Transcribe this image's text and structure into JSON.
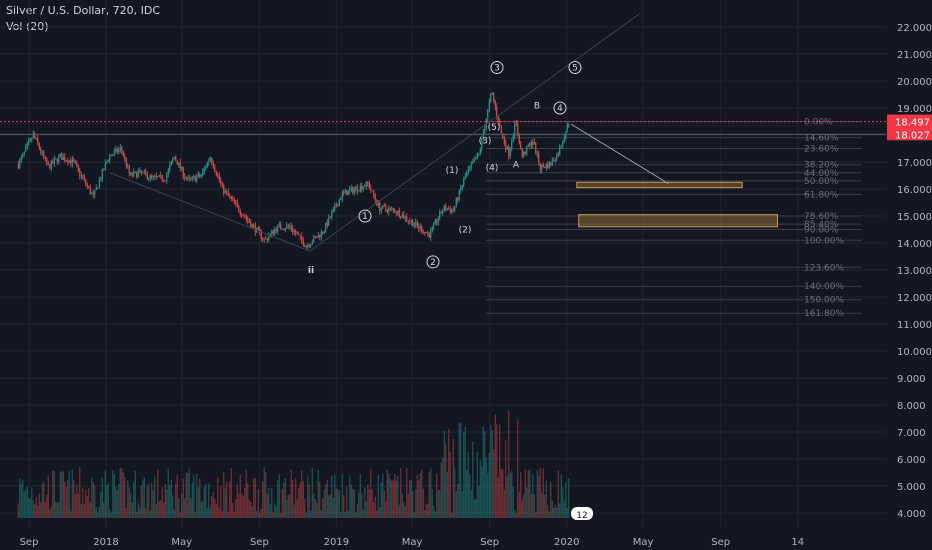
{
  "header": {
    "title": "Silver / U.S. Dollar, 720, IDC",
    "volume_label": "Vol (20)"
  },
  "colors": {
    "background": "#131722",
    "grid": "#1f2430",
    "up": "#26a69a",
    "down": "#ef5350",
    "axis_text": "#b2b5be",
    "price_line": "#f23645",
    "box": "#8a6a3a"
  },
  "chart_data": {
    "type": "candlestick",
    "title": "Silver / U.S. Dollar, 720, IDC",
    "xlabel": "",
    "ylabel": "",
    "ylim": [
      3.5,
      22.5
    ],
    "y_ticks": [
      "22.000",
      "21.000",
      "20.000",
      "19.000",
      "18.000",
      "17.000",
      "16.000",
      "15.000",
      "14.000",
      "13.000",
      "12.000",
      "11.000",
      "10.000",
      "9.000",
      "8.000",
      "7.000",
      "6.000",
      "5.000",
      "4.000"
    ],
    "x_ticks": [
      "Sep",
      "2018",
      "May",
      "Sep",
      "2019",
      "May",
      "Sep",
      "2020",
      "May",
      "Sep",
      "14"
    ],
    "price_path": [
      [
        "2017-08-15",
        16.9
      ],
      [
        "2017-09-08",
        18.0
      ],
      [
        "2017-10-01",
        16.8
      ],
      [
        "2017-10-20",
        17.2
      ],
      [
        "2017-11-10",
        17.0
      ],
      [
        "2017-12-12",
        15.7
      ],
      [
        "2018-01-05",
        17.2
      ],
      [
        "2018-01-25",
        17.5
      ],
      [
        "2018-02-08",
        16.5
      ],
      [
        "2018-02-25",
        16.6
      ],
      [
        "2018-03-15",
        16.4
      ],
      [
        "2018-04-05",
        16.4
      ],
      [
        "2018-04-19",
        17.2
      ],
      [
        "2018-05-10",
        16.3
      ],
      [
        "2018-06-01",
        16.5
      ],
      [
        "2018-06-15",
        17.2
      ],
      [
        "2018-07-05",
        16.0
      ],
      [
        "2018-08-15",
        14.8
      ],
      [
        "2018-09-10",
        14.1
      ],
      [
        "2018-09-30",
        14.6
      ],
      [
        "2018-10-20",
        14.6
      ],
      [
        "2018-11-14",
        13.9
      ],
      [
        "2018-12-10",
        14.4
      ],
      [
        "2019-01-10",
        15.8
      ],
      [
        "2019-02-20",
        16.2
      ],
      [
        "2019-03-10",
        15.3
      ],
      [
        "2019-04-05",
        15.2
      ],
      [
        "2019-05-28",
        14.3
      ],
      [
        "2019-06-20",
        15.3
      ],
      [
        "2019-07-05",
        15.2
      ],
      [
        "2019-07-25",
        16.5
      ],
      [
        "2019-08-15",
        17.3
      ],
      [
        "2019-09-04",
        19.6
      ],
      [
        "2019-09-20",
        18.0
      ],
      [
        "2019-10-01",
        17.3
      ],
      [
        "2019-10-12",
        18.5
      ],
      [
        "2019-10-22",
        17.2
      ],
      [
        "2019-11-08",
        17.8
      ],
      [
        "2019-11-20",
        16.8
      ],
      [
        "2019-12-05",
        16.9
      ],
      [
        "2019-12-18",
        17.3
      ],
      [
        "2020-01-06",
        18.6
      ]
    ],
    "last_price": "18.497",
    "second_price": "18.027",
    "fibonacci_levels": [
      "0.00%",
      "14.60%",
      "23.60%",
      "38.20%",
      "44.00%",
      "50.00%",
      "61.80%",
      "78.60%",
      "85.40%",
      "90.00%",
      "100.00%",
      "123.60%",
      "140.00%",
      "150.00%",
      "161.80%"
    ],
    "fib_prices": [
      18.5,
      17.9,
      17.5,
      16.9,
      16.6,
      16.3,
      15.8,
      15.0,
      14.7,
      14.5,
      14.1,
      13.1,
      12.4,
      11.9,
      11.4
    ],
    "wave_labels": [
      "1",
      "2",
      "3",
      "4",
      "5",
      "(1)",
      "(2)",
      "(3)",
      "(4)",
      "(5)",
      "A",
      "B",
      "ii"
    ],
    "zones": [
      {
        "from": "2020-01-17",
        "to": "2020-10-05",
        "top": 16.25,
        "bottom": 16.05
      },
      {
        "from": "2020-01-20",
        "to": "2020-11-30",
        "top": 15.05,
        "bottom": 14.6
      }
    ],
    "target_line": {
      "from": [
        "2020-01-08",
        18.4
      ],
      "to": [
        "2020-06-10",
        16.2
      ]
    },
    "volume_badge": "12",
    "volume_ylim": [
      0,
      8.5
    ]
  }
}
